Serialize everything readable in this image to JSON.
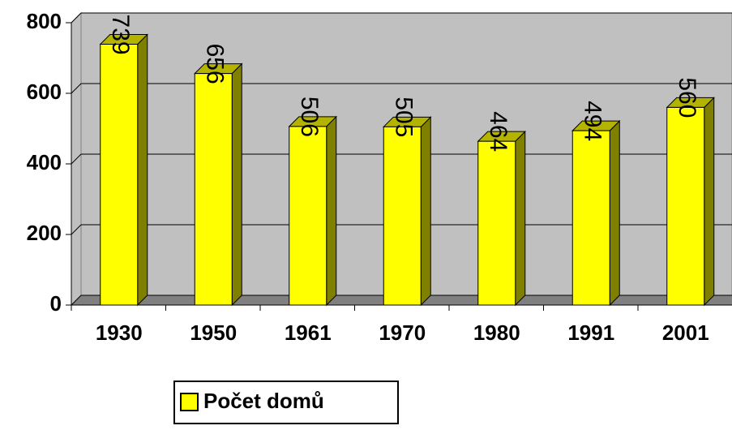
{
  "chart_data": {
    "type": "bar",
    "categories": [
      "1930",
      "1950",
      "1961",
      "1970",
      "1980",
      "1991",
      "2001"
    ],
    "series": [
      {
        "name": "Počet domů",
        "color": "#ffff00",
        "values": [
          739,
          656,
          506,
          505,
          464,
          494,
          560
        ]
      }
    ],
    "ylim": [
      0,
      800
    ],
    "yticks": [
      0,
      200,
      400,
      600,
      800
    ],
    "grid": true,
    "legend": "bottom"
  }
}
